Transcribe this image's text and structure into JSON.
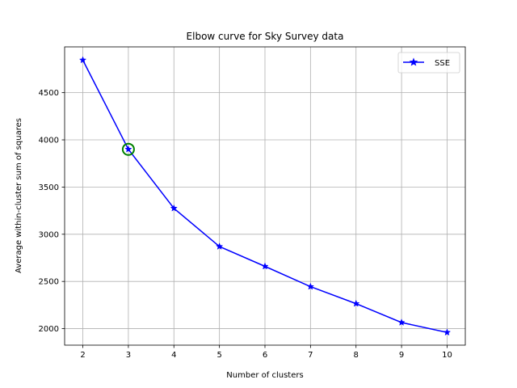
{
  "chart_data": {
    "type": "line",
    "title": "Elbow curve for Sky Survey data",
    "xlabel": "Number of clusters",
    "ylabel": "Average within-cluster sum of squares",
    "x": [
      2,
      3,
      4,
      5,
      6,
      7,
      8,
      9,
      10
    ],
    "series": [
      {
        "name": "SSE",
        "values": [
          4845,
          3900,
          3275,
          2870,
          2660,
          2445,
          2265,
          2065,
          1960
        ],
        "color": "#0000ff",
        "marker": "star"
      }
    ],
    "xticks": [
      "2",
      "3",
      "4",
      "5",
      "6",
      "7",
      "8",
      "9",
      "10"
    ],
    "yticks": [
      "2000",
      "2500",
      "3000",
      "3500",
      "4000",
      "4500"
    ],
    "xlim": [
      1.6,
      10.4
    ],
    "ylim": [
      1825,
      4985
    ],
    "grid": true,
    "legend_position": "upper right",
    "highlight": {
      "x": 3,
      "y": 3900,
      "color": "#008000",
      "shape": "circle"
    },
    "colors": {
      "grid": "#b0b0b0",
      "axes": "#000000"
    }
  }
}
